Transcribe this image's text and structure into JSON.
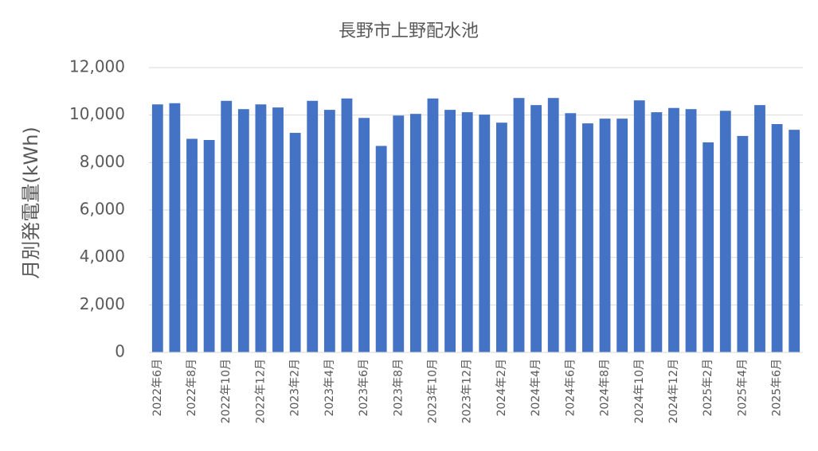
{
  "chart_data": {
    "type": "bar",
    "title": "長野市上野配水池",
    "y_label": "月別発電量(kWh)",
    "categories": [
      "2022年6月",
      null,
      "2022年8月",
      null,
      "2022年10月",
      null,
      "2022年12月",
      null,
      "2023年2月",
      null,
      "2023年4月",
      null,
      "2023年6月",
      null,
      "2023年8月",
      null,
      "2023年10月",
      null,
      "2023年12月",
      null,
      "2024年2月",
      null,
      "2024年4月",
      null,
      "2024年6月",
      null,
      "2024年8月",
      null,
      "2024年10月",
      null,
      "2024年12月",
      null,
      "2025年2月",
      null,
      "2025年4月",
      null,
      "2025年6月",
      null
    ],
    "values": [
      10450,
      10500,
      9000,
      8950,
      10600,
      10250,
      10450,
      10320,
      9250,
      10600,
      10220,
      10700,
      9880,
      8700,
      9980,
      10050,
      10700,
      10220,
      10120,
      10020,
      9680,
      10720,
      10420,
      10720,
      10080,
      9650,
      9850,
      9850,
      10620,
      10120,
      10300,
      10250,
      8850,
      10180,
      9120,
      10420,
      9620,
      9380
    ],
    "color": "#4472c4",
    "ylim": [
      0,
      12000
    ],
    "yticks": [
      0,
      {
        "value": 2000,
        "label": "2,000"
      },
      {
        "value": 4000,
        "label": "4,000"
      },
      {
        "value": 6000,
        "label": "6,000"
      },
      {
        "value": 8000,
        "label": "8,000"
      },
      {
        "value": 10000,
        "label": "10,000"
      },
      {
        "value": 12000,
        "label": "12,000"
      }
    ],
    "grid": true
  }
}
